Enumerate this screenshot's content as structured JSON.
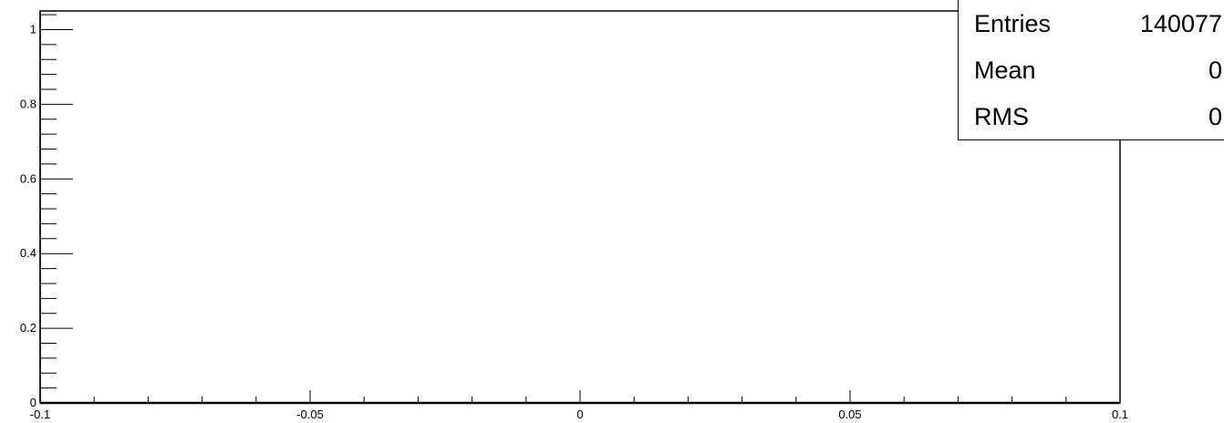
{
  "chart_data": {
    "type": "histogram",
    "title": "",
    "xlabel": "",
    "ylabel": "",
    "xlim": [
      -0.1,
      0.1
    ],
    "ylim": [
      0,
      1.05
    ],
    "x_major_ticks": [
      -0.1,
      -0.05,
      0,
      0.05,
      0.1
    ],
    "x_tick_labels": [
      "-0.1",
      "-0.05",
      "0",
      "0.05",
      "0.1"
    ],
    "y_major_ticks": [
      0,
      0.2,
      0.4,
      0.6,
      0.8,
      1
    ],
    "y_tick_labels": [
      "0",
      "0.2",
      "0.4",
      "0.6",
      "0.8",
      "1"
    ],
    "grid": false,
    "bins": [],
    "values": [],
    "stats_box": {
      "placement": "top-right",
      "rows": [
        {
          "label": "Entries",
          "value": "140077"
        },
        {
          "label": "Mean",
          "value": "0"
        },
        {
          "label": "RMS",
          "value": "0"
        }
      ]
    }
  }
}
